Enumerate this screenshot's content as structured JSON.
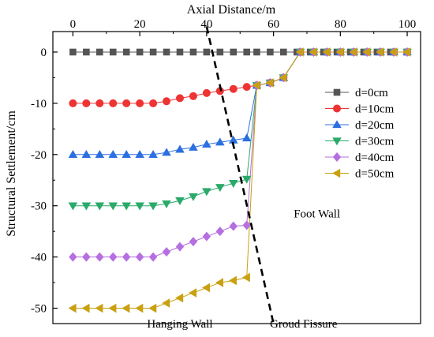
{
  "chart_data": {
    "type": "line",
    "title": "",
    "xlabel": "Axial Distance/m",
    "ylabel": "Structural Settlement/cm",
    "xlim": [
      -6,
      104
    ],
    "ylim": [
      -53,
      4
    ],
    "xticks": [
      0,
      20,
      40,
      60,
      80,
      100
    ],
    "yticks": [
      0,
      -10,
      -20,
      -30,
      -40,
      -50
    ],
    "x_axis_position": "top",
    "grid": false,
    "legend_position": "right",
    "x": [
      0,
      4,
      8,
      12,
      16,
      20,
      24,
      28,
      32,
      36,
      40,
      44,
      48,
      52,
      55,
      59,
      63,
      67,
      71,
      75,
      79,
      83,
      87,
      91,
      95,
      100
    ],
    "series": [
      {
        "name": "d=0cm",
        "color": "#555555",
        "marker": "square",
        "x": [
          0,
          4,
          8,
          12,
          16,
          20,
          24,
          28,
          32,
          36,
          40,
          44,
          48,
          52,
          55,
          59,
          63,
          67,
          71,
          75,
          79,
          83,
          87,
          91,
          95,
          100
        ],
        "values": [
          0,
          0,
          0,
          0,
          0,
          0,
          0,
          0,
          0,
          0,
          0,
          0,
          0,
          0,
          0,
          0,
          0,
          0,
          0,
          0,
          0,
          0,
          0,
          0,
          0,
          0
        ]
      },
      {
        "name": "d=10cm",
        "color": "#ee3333",
        "marker": "circle",
        "x": [
          0,
          4,
          8,
          12,
          16,
          20,
          24,
          28,
          32,
          36,
          40,
          44,
          48,
          52,
          55,
          59,
          63,
          68,
          72,
          76,
          80,
          84,
          88,
          92,
          96,
          100
        ],
        "values": [
          -10,
          -10,
          -10,
          -10,
          -10,
          -10,
          -10,
          -9.6,
          -9,
          -8.6,
          -8,
          -7.6,
          -7.2,
          -6.8,
          -6.5,
          -6,
          -5,
          0,
          0,
          0,
          0,
          0,
          0,
          0,
          0,
          0
        ]
      },
      {
        "name": "d=20cm",
        "color": "#2b6fe0",
        "marker": "triangle-up",
        "x": [
          0,
          4,
          8,
          12,
          16,
          20,
          24,
          28,
          32,
          36,
          40,
          44,
          48,
          52,
          55,
          59,
          63,
          68,
          72,
          76,
          80,
          84,
          88,
          92,
          96,
          100
        ],
        "values": [
          -20,
          -20,
          -20,
          -20,
          -20,
          -20,
          -20,
          -19.6,
          -19,
          -18.6,
          -18,
          -17.6,
          -17.2,
          -16.8,
          -6.5,
          -6,
          -5,
          0,
          0,
          0,
          0,
          0,
          0,
          0,
          0,
          0
        ]
      },
      {
        "name": "d=30cm",
        "color": "#2aaa6a",
        "marker": "triangle-down",
        "x": [
          0,
          4,
          8,
          12,
          16,
          20,
          24,
          28,
          32,
          36,
          40,
          44,
          48,
          52,
          55,
          59,
          63,
          68,
          72,
          76,
          80,
          84,
          88,
          92,
          96,
          100
        ],
        "values": [
          -30,
          -30,
          -30,
          -30,
          -30,
          -30,
          -30,
          -29.6,
          -29,
          -28.2,
          -27.2,
          -26.4,
          -25.6,
          -24.8,
          -6.5,
          -6,
          -5,
          0,
          0,
          0,
          0,
          0,
          0,
          0,
          0,
          0
        ]
      },
      {
        "name": "d=40cm",
        "color": "#b56fe0",
        "marker": "diamond",
        "x": [
          0,
          4,
          8,
          12,
          16,
          20,
          24,
          28,
          32,
          36,
          40,
          44,
          48,
          52,
          55,
          59,
          63,
          68,
          72,
          76,
          80,
          84,
          88,
          92,
          96,
          100
        ],
        "values": [
          -40,
          -40,
          -40,
          -40,
          -40,
          -40,
          -40,
          -39,
          -38,
          -37,
          -36,
          -35,
          -34,
          -33.8,
          -6.5,
          -6,
          -5,
          0,
          0,
          0,
          0,
          0,
          0,
          0,
          0,
          0
        ]
      },
      {
        "name": "d=50cm",
        "color": "#c9a010",
        "marker": "triangle-left",
        "x": [
          0,
          4,
          8,
          12,
          16,
          20,
          24,
          28,
          32,
          36,
          40,
          44,
          48,
          52,
          55,
          59,
          63,
          68,
          72,
          76,
          80,
          84,
          88,
          92,
          96,
          100
        ],
        "values": [
          -50,
          -50,
          -50,
          -50,
          -50,
          -50,
          -50,
          -49,
          -48,
          -47,
          -46,
          -45,
          -44.6,
          -44,
          -6.5,
          -6,
          -5,
          0,
          0,
          0,
          0,
          0,
          0,
          0,
          0,
          0
        ]
      }
    ],
    "fissure_line": {
      "color": "#000000",
      "points": [
        [
          40,
          5
        ],
        [
          60,
          -53
        ]
      ]
    },
    "annotations": [
      {
        "text": "Foot Wall",
        "x": 73,
        "y": -31.5
      },
      {
        "text": "Hanging Wall",
        "x": 32,
        "y": -53
      },
      {
        "text": "Groud Fissure",
        "x": 69,
        "y": -53
      }
    ]
  }
}
